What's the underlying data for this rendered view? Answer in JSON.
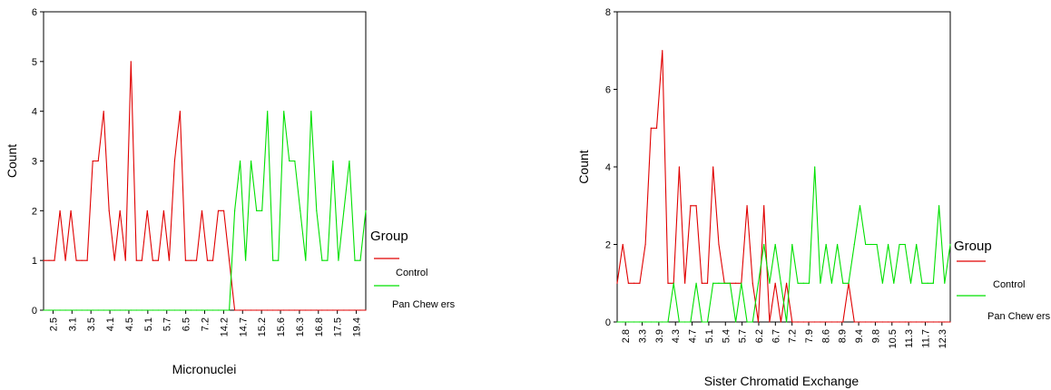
{
  "chart_data": [
    {
      "type": "line",
      "title": "",
      "xlabel": "Micronuclei",
      "ylabel": "Count",
      "ylim": [
        0,
        6
      ],
      "y_ticks": [
        "0",
        "1",
        "2",
        "3",
        "4",
        "5",
        "6"
      ],
      "x_tick_labels": [
        "2.5",
        "3.1",
        "3.5",
        "4.1",
        "4.5",
        "5.1",
        "5.7",
        "6.5",
        "7.2",
        "14.2",
        "14.7",
        "15.2",
        "15.6",
        "16.3",
        "16.8",
        "17.5",
        "19.4"
      ],
      "n_points": 60,
      "legend": {
        "title": "Group",
        "position": "right"
      },
      "series": [
        {
          "name": "Control",
          "color": "#e00000",
          "values": [
            1,
            1,
            1,
            2,
            1,
            2,
            1,
            1,
            1,
            3,
            3,
            4,
            2,
            1,
            2,
            1,
            5,
            1,
            1,
            2,
            1,
            1,
            2,
            1,
            3,
            4,
            1,
            1,
            1,
            2,
            1,
            1,
            2,
            2,
            1,
            0,
            0,
            0,
            0,
            0,
            0,
            0,
            0,
            0,
            0,
            0,
            0,
            0,
            0,
            0,
            0,
            0,
            0,
            0,
            0,
            0,
            0,
            0,
            0,
            0
          ]
        },
        {
          "name": "Pan Chew ers",
          "color": "#00e000",
          "values": [
            0,
            0,
            0,
            0,
            0,
            0,
            0,
            0,
            0,
            0,
            0,
            0,
            0,
            0,
            0,
            0,
            0,
            0,
            0,
            0,
            0,
            0,
            0,
            0,
            0,
            0,
            0,
            0,
            0,
            0,
            0,
            0,
            0,
            0,
            0,
            2,
            3,
            1,
            3,
            2,
            2,
            4,
            1,
            1,
            4,
            3,
            3,
            2,
            1,
            4,
            2,
            1,
            1,
            3,
            1,
            2,
            3,
            1,
            1,
            2
          ]
        }
      ]
    },
    {
      "type": "line",
      "title": "",
      "xlabel": "Sister Chromatid Exchange",
      "ylabel": "Count",
      "ylim": [
        0,
        8
      ],
      "y_ticks": [
        "0",
        "2",
        "4",
        "6",
        "8"
      ],
      "x_tick_labels": [
        "2.8",
        "3.3",
        "3.9",
        "4.3",
        "4.7",
        "5.1",
        "5.4",
        "5.7",
        "6.2",
        "6.7",
        "7.2",
        "7.9",
        "8.6",
        "8.9",
        "9.4",
        "9.8",
        "10.5",
        "11.3",
        "11.7",
        "12.3"
      ],
      "n_points": 60,
      "legend": {
        "title": "Group",
        "position": "right"
      },
      "series": [
        {
          "name": "Control",
          "color": "#e00000",
          "values": [
            1,
            2,
            1,
            1,
            1,
            2,
            5,
            5,
            7,
            1,
            1,
            4,
            1,
            3,
            3,
            1,
            1,
            4,
            2,
            1,
            1,
            1,
            1,
            3,
            1,
            0,
            3,
            0,
            1,
            0,
            1,
            0,
            0,
            0,
            0,
            0,
            0,
            0,
            0,
            0,
            0,
            1,
            0,
            0,
            0,
            0,
            0,
            0,
            0,
            0,
            0,
            0,
            0,
            0,
            0,
            0,
            0,
            0,
            0,
            0
          ]
        },
        {
          "name": "Pan Chew ers",
          "color": "#00e000",
          "values": [
            0,
            0,
            0,
            0,
            0,
            0,
            0,
            0,
            0,
            0,
            1,
            0,
            0,
            0,
            1,
            0,
            0,
            1,
            1,
            1,
            1,
            0,
            1,
            0,
            0,
            1,
            2,
            1,
            2,
            1,
            0,
            2,
            1,
            1,
            1,
            4,
            1,
            2,
            1,
            2,
            1,
            1,
            2,
            3,
            2,
            2,
            2,
            1,
            2,
            1,
            2,
            2,
            1,
            2,
            1,
            1,
            1,
            3,
            1,
            2
          ]
        }
      ]
    }
  ]
}
